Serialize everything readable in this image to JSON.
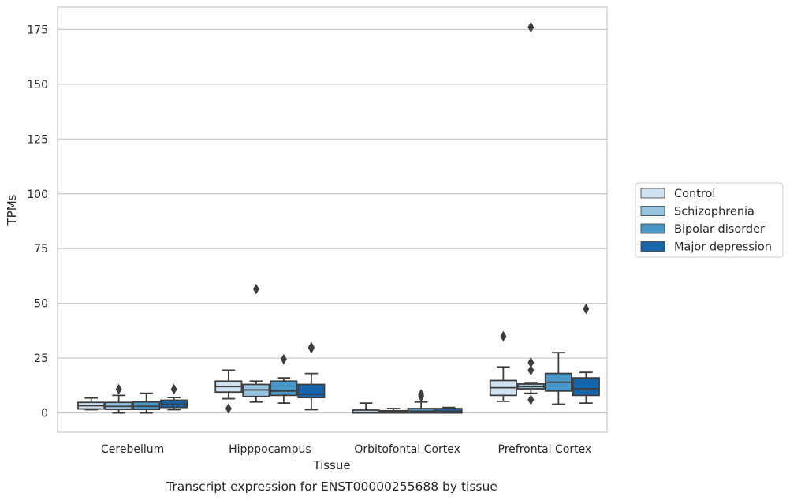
{
  "chart_data": {
    "type": "box",
    "title": "",
    "caption": "Transcript expression for ENST00000255688 by tissue",
    "xlabel": "Tissue",
    "ylabel": "TPMs",
    "ylim": [
      -8,
      185
    ],
    "yticks": [
      0,
      25,
      50,
      75,
      100,
      125,
      150,
      175
    ],
    "grid": "horizontal",
    "legend_position": "right",
    "categories": [
      "Cerebellum",
      "Hipppocampus",
      "Orbitofontal Cortex",
      "Prefrontal Cortex"
    ],
    "series": [
      {
        "name": "Control",
        "color": "#d0e1f2",
        "boxes": [
          {
            "whislo": 1.5,
            "q1": 1.8,
            "med": 3.3,
            "q3": 4.8,
            "whishi": 6.8,
            "fliers": []
          },
          {
            "whislo": 6.5,
            "q1": 9.5,
            "med": 12.0,
            "q3": 14.5,
            "whishi": 19.5,
            "fliers": [
              2.0
            ]
          },
          {
            "whislo": 0.0,
            "q1": 0.0,
            "med": 0.3,
            "q3": 1.3,
            "whishi": 4.5,
            "fliers": []
          },
          {
            "whislo": 5.3,
            "q1": 8.0,
            "med": 11.5,
            "q3": 14.8,
            "whishi": 21.0,
            "fliers": [
              35.0
            ]
          }
        ]
      },
      {
        "name": "Schizophrenia",
        "color": "#94c4df",
        "boxes": [
          {
            "whislo": 0.0,
            "q1": 1.6,
            "med": 3.0,
            "q3": 4.8,
            "whishi": 8.0,
            "fliers": [
              10.8
            ]
          },
          {
            "whislo": 5.0,
            "q1": 7.5,
            "med": 10.5,
            "q3": 13.0,
            "whishi": 14.5,
            "fliers": [
              56.5
            ]
          },
          {
            "whislo": 0.0,
            "q1": 0.0,
            "med": 0.5,
            "q3": 1.0,
            "whishi": 2.0,
            "fliers": []
          },
          {
            "whislo": 9.0,
            "q1": 11.0,
            "med": 12.0,
            "q3": 13.2,
            "whishi": 13.5,
            "fliers": [
              6.0,
              19.5,
              23.0
            ]
          }
        ]
      },
      {
        "name": "Bipolar disorder",
        "color": "#4a98c9",
        "boxes": [
          {
            "whislo": 0.0,
            "q1": 1.6,
            "med": 3.0,
            "q3": 5.0,
            "whishi": 9.0,
            "fliers": []
          },
          {
            "whislo": 4.5,
            "q1": 8.0,
            "med": 10.0,
            "q3": 14.5,
            "whishi": 16.0,
            "fliers": [
              24.5
            ]
          },
          {
            "whislo": 0.0,
            "q1": 0.0,
            "med": 0.8,
            "q3": 2.0,
            "whishi": 5.0,
            "fliers": [
              7.5,
              8.5
            ]
          },
          {
            "whislo": 4.0,
            "q1": 10.0,
            "med": 14.0,
            "q3": 18.0,
            "whishi": 27.5,
            "fliers": []
          }
        ]
      },
      {
        "name": "Major depression",
        "color": "#1764ab",
        "boxes": [
          {
            "whislo": 1.5,
            "q1": 2.5,
            "med": 4.0,
            "q3": 5.8,
            "whishi": 7.0,
            "fliers": [
              10.8
            ]
          },
          {
            "whislo": 1.5,
            "q1": 7.0,
            "med": 8.5,
            "q3": 13.0,
            "whishi": 18.0,
            "fliers": [
              29.5,
              30.0
            ]
          },
          {
            "whislo": 0.0,
            "q1": 0.0,
            "med": 0.8,
            "q3": 2.0,
            "whishi": 2.5,
            "fliers": []
          },
          {
            "whislo": 4.5,
            "q1": 8.0,
            "med": 11.0,
            "q3": 16.0,
            "whishi": 18.5,
            "fliers": [
              47.5
            ]
          }
        ]
      }
    ],
    "extra_fliers": [
      {
        "category": "Prefrontal Cortex",
        "series": "Schizophrenia",
        "value": 176.0
      }
    ]
  }
}
